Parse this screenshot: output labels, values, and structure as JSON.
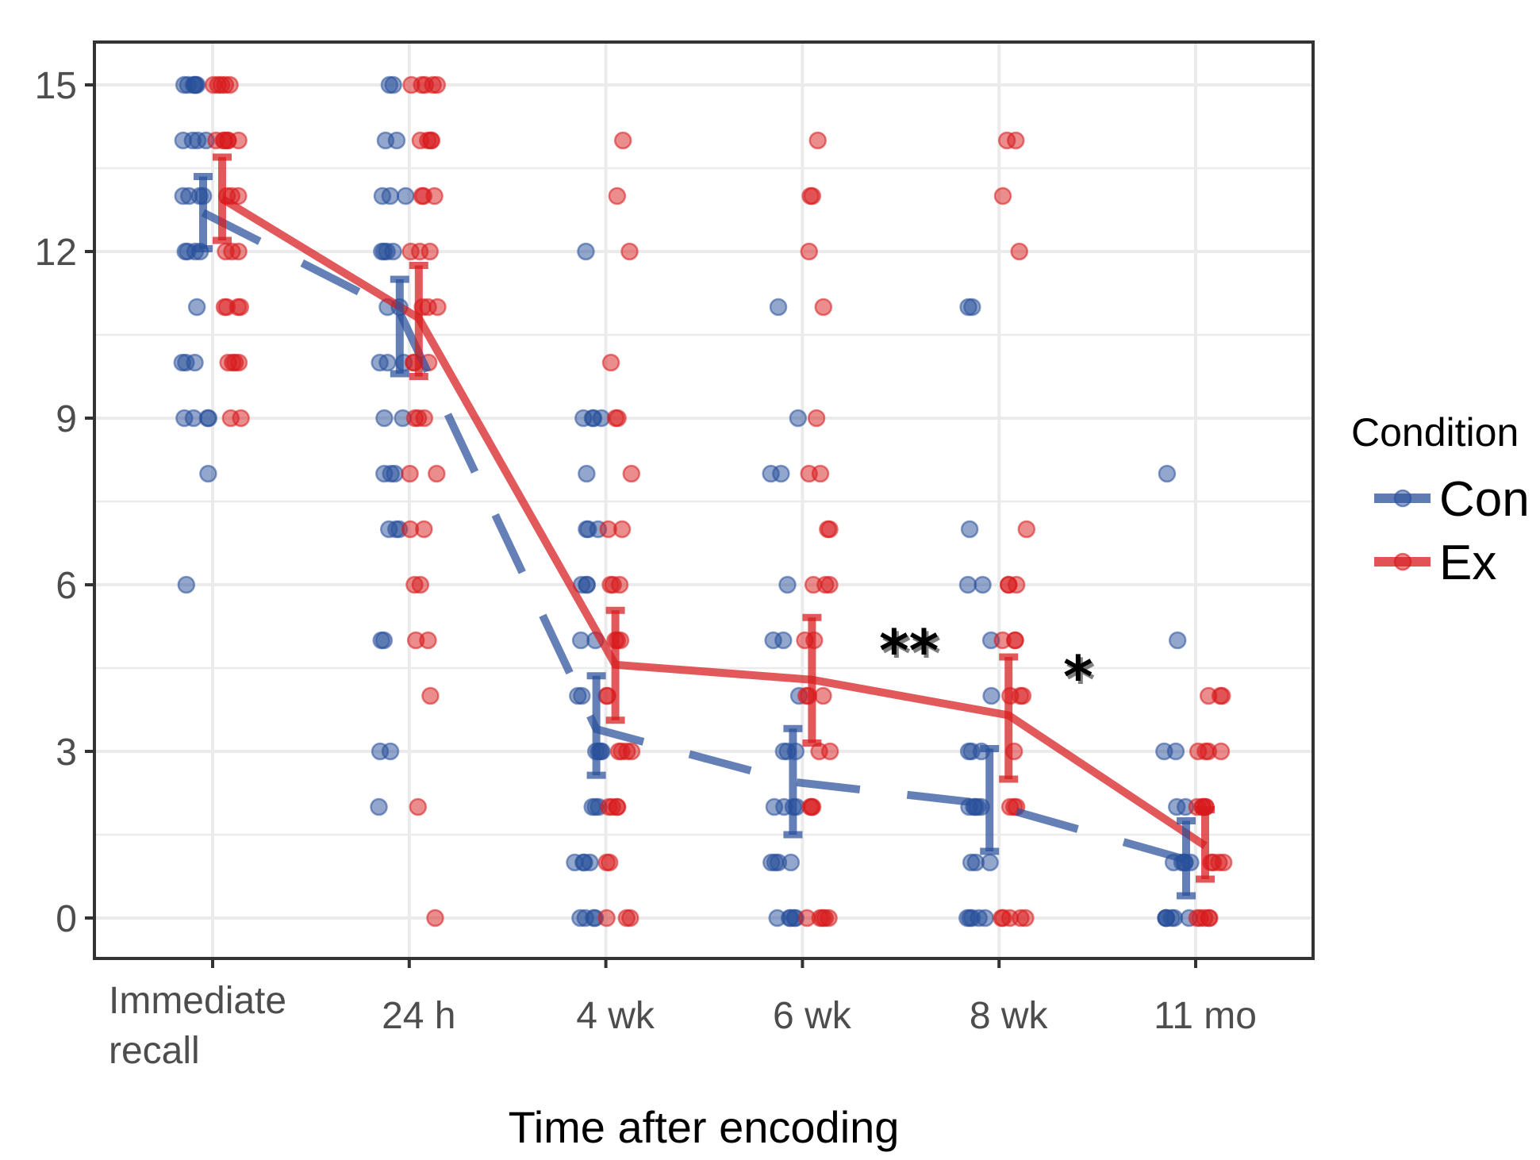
{
  "chart_data": {
    "type": "scatter",
    "title": "",
    "xlabel": "Time after encoding",
    "ylabel": "",
    "categories": [
      "Immediate recall",
      "24 h",
      "4 wk",
      "6 wk",
      "8 wk",
      "11 mo"
    ],
    "category_label_lines": [
      [
        "Immediate",
        "recall"
      ],
      [
        "24 h"
      ],
      [
        "4 wk"
      ],
      [
        "6 wk"
      ],
      [
        "8 wk"
      ],
      [
        "11 mo"
      ]
    ],
    "ylim": [
      -0.75,
      16
    ],
    "yticks": [
      0,
      3,
      6,
      9,
      12,
      15
    ],
    "grid": true,
    "legend": {
      "title": "Condition",
      "placement": "right",
      "entries": [
        "Con",
        "Ex"
      ]
    },
    "series": [
      {
        "name": "Con",
        "color": "#284f9a",
        "line_style": "dashed",
        "means": [
          12.7,
          10.9,
          3.4,
          2.45,
          2.05,
          1.05
        ],
        "ci_low": [
          12.05,
          9.8,
          2.57,
          1.5,
          1.2,
          0.4
        ],
        "ci_high": [
          13.35,
          11.5,
          4.36,
          3.41,
          3.05,
          1.75
        ],
        "points": [
          [
            15,
            15,
            15,
            15,
            15,
            15,
            14,
            14,
            14,
            14,
            13,
            13,
            13,
            13,
            12,
            12,
            12,
            12,
            11,
            10,
            10,
            10,
            9,
            9,
            9,
            9,
            8,
            6
          ],
          [
            15,
            15,
            14,
            14,
            13,
            13,
            13,
            12,
            12,
            12,
            12,
            11,
            11,
            10,
            10,
            10,
            9,
            9,
            8,
            8,
            8,
            7,
            7,
            7,
            5,
            5,
            3,
            3,
            2
          ],
          [
            12,
            9,
            9,
            9,
            9,
            8,
            7,
            7,
            7,
            6,
            6,
            6,
            5,
            5,
            4,
            4,
            3,
            3,
            3,
            3,
            2,
            2,
            2,
            1,
            1,
            1,
            1,
            0,
            0,
            0,
            0
          ],
          [
            11,
            9,
            8,
            8,
            6,
            5,
            5,
            4,
            3,
            3,
            3,
            2,
            2,
            2,
            2,
            1,
            1,
            1,
            1,
            0,
            0,
            0,
            0,
            0
          ],
          [
            11,
            11,
            7,
            6,
            6,
            5,
            4,
            3,
            3,
            3,
            2,
            2,
            2,
            2,
            2,
            1,
            1,
            1,
            0,
            0,
            0,
            0,
            0
          ],
          [
            8,
            5,
            3,
            3,
            2,
            2,
            1,
            1,
            1,
            1,
            1,
            0,
            0,
            0,
            0,
            0,
            0
          ]
        ]
      },
      {
        "name": "Ex",
        "color": "#d7191c",
        "line_style": "solid",
        "means": [
          12.95,
          10.8,
          4.56,
          4.29,
          3.65,
          1.3
        ],
        "ci_low": [
          12.2,
          9.75,
          3.56,
          3.15,
          2.5,
          0.7
        ],
        "ci_high": [
          13.7,
          11.75,
          5.54,
          5.41,
          4.7,
          1.95
        ],
        "points": [
          [
            15,
            15,
            15,
            15,
            15,
            14,
            14,
            14,
            14,
            14,
            14,
            13,
            13,
            13,
            12,
            12,
            12,
            11,
            11,
            11,
            11,
            10,
            10,
            10,
            10,
            9,
            9
          ],
          [
            15,
            15,
            15,
            15,
            15,
            14,
            14,
            14,
            14,
            13,
            13,
            13,
            12,
            12,
            12,
            11,
            11,
            11,
            10,
            10,
            10,
            9,
            9,
            9,
            8,
            8,
            7,
            7,
            6,
            6,
            5,
            5,
            4,
            2,
            0
          ],
          [
            14,
            13,
            12,
            10,
            9,
            9,
            8,
            7,
            7,
            6,
            6,
            6,
            5,
            5,
            5,
            4,
            4,
            3,
            3,
            3,
            3,
            2,
            2,
            2,
            2,
            1,
            1,
            0,
            0,
            0
          ],
          [
            14,
            13,
            13,
            12,
            11,
            9,
            8,
            8,
            7,
            7,
            6,
            6,
            6,
            5,
            5,
            4,
            4,
            4,
            3,
            3,
            2,
            2,
            2,
            0,
            0,
            0,
            0,
            0
          ],
          [
            14,
            14,
            13,
            12,
            7,
            6,
            6,
            6,
            5,
            5,
            5,
            4,
            4,
            4,
            3,
            2,
            2,
            2,
            0,
            0,
            0,
            0,
            0
          ],
          [
            4,
            4,
            4,
            3,
            3,
            3,
            3,
            2,
            2,
            2,
            2,
            2,
            1,
            1,
            1,
            1,
            0,
            0,
            0,
            0,
            0
          ]
        ]
      }
    ],
    "annotations": [
      {
        "text": "**",
        "category": "6 wk",
        "y": 5.0
      },
      {
        "text": "*",
        "category": "8 wk",
        "y": 4.5
      }
    ]
  }
}
